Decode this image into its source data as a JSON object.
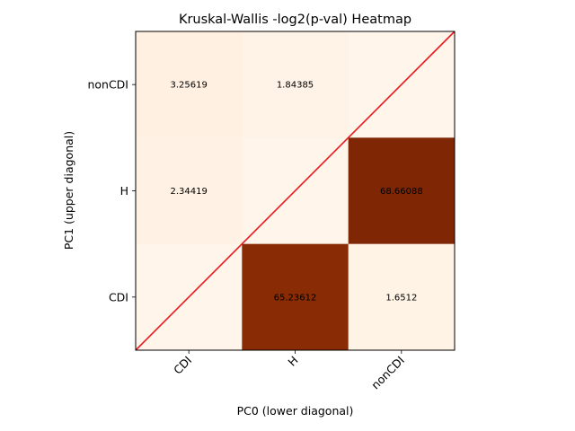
{
  "chart_data": {
    "type": "heatmap",
    "title": "Kruskal-Wallis -log2(p-val) Heatmap",
    "xlabel": "PC0 (lower diagonal)",
    "ylabel": "PC1 (upper diagonal)",
    "x_categories": [
      "CDI",
      "H",
      "nonCDI"
    ],
    "y_categories": [
      "CDI",
      "H",
      "nonCDI"
    ],
    "colormap": "Oranges-to-dark-red",
    "diagonal_line_color": "#e41a1c",
    "cells": [
      {
        "x": "CDI",
        "y": "nonCDI",
        "value": 3.25619,
        "label": "3.25619"
      },
      {
        "x": "H",
        "y": "nonCDI",
        "value": 1.84385,
        "label": "1.84385"
      },
      {
        "x": "nonCDI",
        "y": "nonCDI",
        "value": 0,
        "label": ""
      },
      {
        "x": "CDI",
        "y": "H",
        "value": 2.34419,
        "label": "2.34419"
      },
      {
        "x": "H",
        "y": "H",
        "value": 0,
        "label": ""
      },
      {
        "x": "nonCDI",
        "y": "H",
        "value": 68.66088,
        "label": "68.66088"
      },
      {
        "x": "CDI",
        "y": "CDI",
        "value": 0,
        "label": ""
      },
      {
        "x": "H",
        "y": "CDI",
        "value": 65.23612,
        "label": "65.23612"
      },
      {
        "x": "nonCDI",
        "y": "CDI",
        "value": 1.6512,
        "label": "1.6512"
      }
    ],
    "vmin": 0,
    "vmax": 68.66088,
    "grid": false
  }
}
